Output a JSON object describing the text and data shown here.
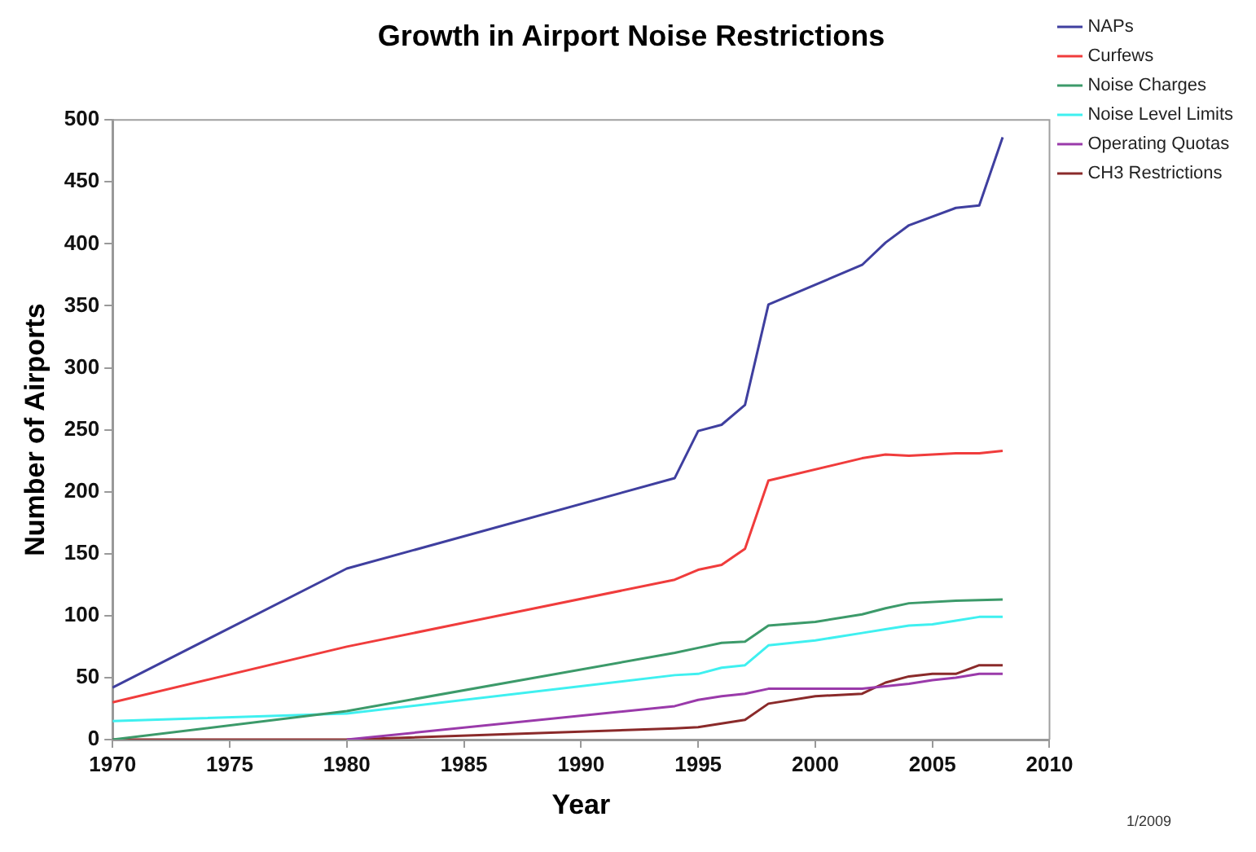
{
  "chart_data": {
    "type": "line",
    "title": "Growth in Airport Noise Restrictions",
    "xlabel": "Year",
    "ylabel": "Number of Airports",
    "xlim": [
      1970,
      2010
    ],
    "xticks": [
      1970,
      1975,
      1980,
      1985,
      1990,
      1995,
      2000,
      2005,
      2010
    ],
    "ylim": [
      0,
      500
    ],
    "yticks": [
      0,
      50,
      100,
      150,
      200,
      250,
      300,
      350,
      400,
      450,
      500
    ],
    "grid": false,
    "legend": "right",
    "marker": "none",
    "line_style": "solid",
    "annotations": [
      "1/2009"
    ],
    "series": [
      {
        "name": "NAPs",
        "color": "#3f3f9f",
        "x": [
          1970,
          1980,
          1994,
          1995,
          1996,
          1997,
          1998,
          2002,
          2003,
          2004,
          2006,
          2007,
          2008
        ],
        "values": [
          42,
          138,
          211,
          249,
          254,
          270,
          351,
          383,
          401,
          415,
          429,
          431,
          486
        ]
      },
      {
        "name": "Curfews",
        "color": "#f03c3c",
        "x": [
          1970,
          1980,
          1994,
          1995,
          1996,
          1997,
          1998,
          2002,
          2003,
          2004,
          2006,
          2007,
          2008
        ],
        "values": [
          30,
          75,
          129,
          137,
          141,
          154,
          209,
          227,
          230,
          229,
          231,
          231,
          233
        ]
      },
      {
        "name": "Noise Charges",
        "color": "#3c9a6a",
        "x": [
          1970,
          1980,
          1994,
          1995,
          1996,
          1997,
          1998,
          2000,
          2002,
          2003,
          2004,
          2006,
          2008
        ],
        "values": [
          0,
          23,
          70,
          74,
          78,
          79,
          92,
          95,
          101,
          106,
          110,
          112,
          113
        ]
      },
      {
        "name": "Noise Level Limits",
        "color": "#3ff0f0",
        "x": [
          1970,
          1980,
          1994,
          1995,
          1996,
          1997,
          1998,
          2000,
          2002,
          2003,
          2004,
          2005,
          2006,
          2007,
          2008
        ],
        "values": [
          15,
          21,
          52,
          53,
          58,
          60,
          76,
          80,
          86,
          89,
          92,
          93,
          96,
          99,
          99
        ]
      },
      {
        "name": "Operating Quotas",
        "color": "#9a3aaa",
        "x": [
          1980,
          1994,
          1995,
          1996,
          1997,
          1998,
          2002,
          2004,
          2005,
          2006,
          2007,
          2008
        ],
        "values": [
          0,
          27,
          32,
          35,
          37,
          41,
          41,
          45,
          48,
          50,
          53,
          53
        ]
      },
      {
        "name": "CH3 Restrictions",
        "color": "#8a2a2a",
        "x": [
          1970,
          1980,
          1994,
          1995,
          1996,
          1997,
          1998,
          2000,
          2002,
          2003,
          2004,
          2005,
          2006,
          2007,
          2008
        ],
        "values": [
          0,
          0,
          9,
          10,
          13,
          16,
          29,
          35,
          37,
          46,
          51,
          53,
          53,
          60,
          60
        ]
      }
    ]
  }
}
